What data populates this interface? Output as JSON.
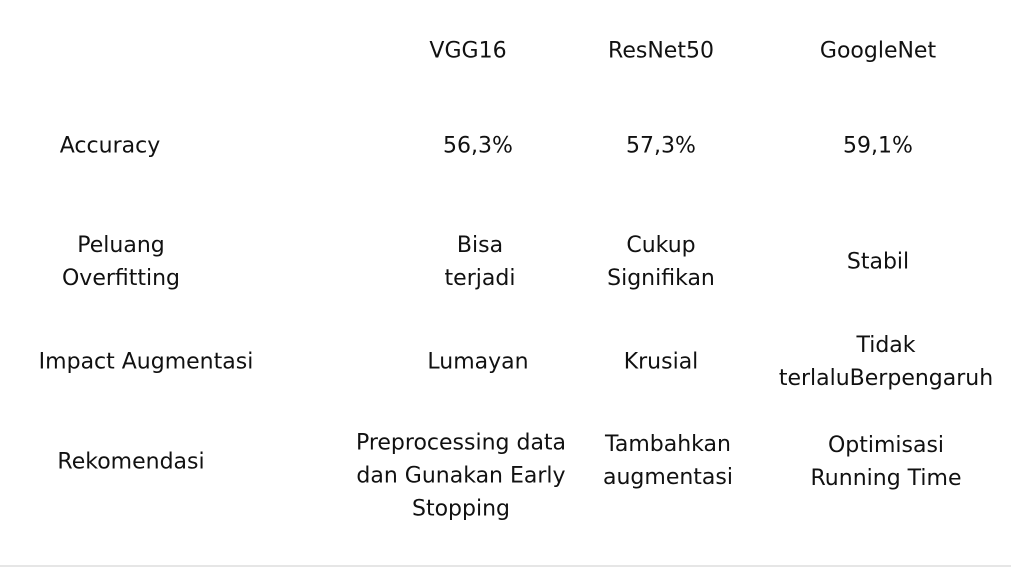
{
  "table": {
    "headers": [
      "VGG16",
      "ResNet50",
      "GoogleNet"
    ],
    "rows": [
      {
        "label": [
          "Accuracy"
        ],
        "cells": [
          [
            "56,3%"
          ],
          [
            "57,3%"
          ],
          [
            "59,1%"
          ]
        ]
      },
      {
        "label": [
          "Peluang",
          "Overfitting"
        ],
        "cells": [
          [
            "Bisa",
            "terjadi"
          ],
          [
            "Cukup",
            "Signifikan"
          ],
          [
            "Stabil"
          ]
        ]
      },
      {
        "label": [
          "Impact Augmentasi"
        ],
        "cells": [
          [
            "Lumayan"
          ],
          [
            "Krusial"
          ],
          [
            "Tidak",
            "terlaluBerpengaruh"
          ]
        ]
      },
      {
        "label": [
          "Rekomendasi"
        ],
        "cells": [
          [
            "Preprocessing data",
            "dan Gunakan Early",
            "Stopping"
          ],
          [
            "Tambahkan",
            "augmentasi"
          ],
          [
            "Optimisasi",
            "Running Time"
          ]
        ]
      }
    ]
  }
}
